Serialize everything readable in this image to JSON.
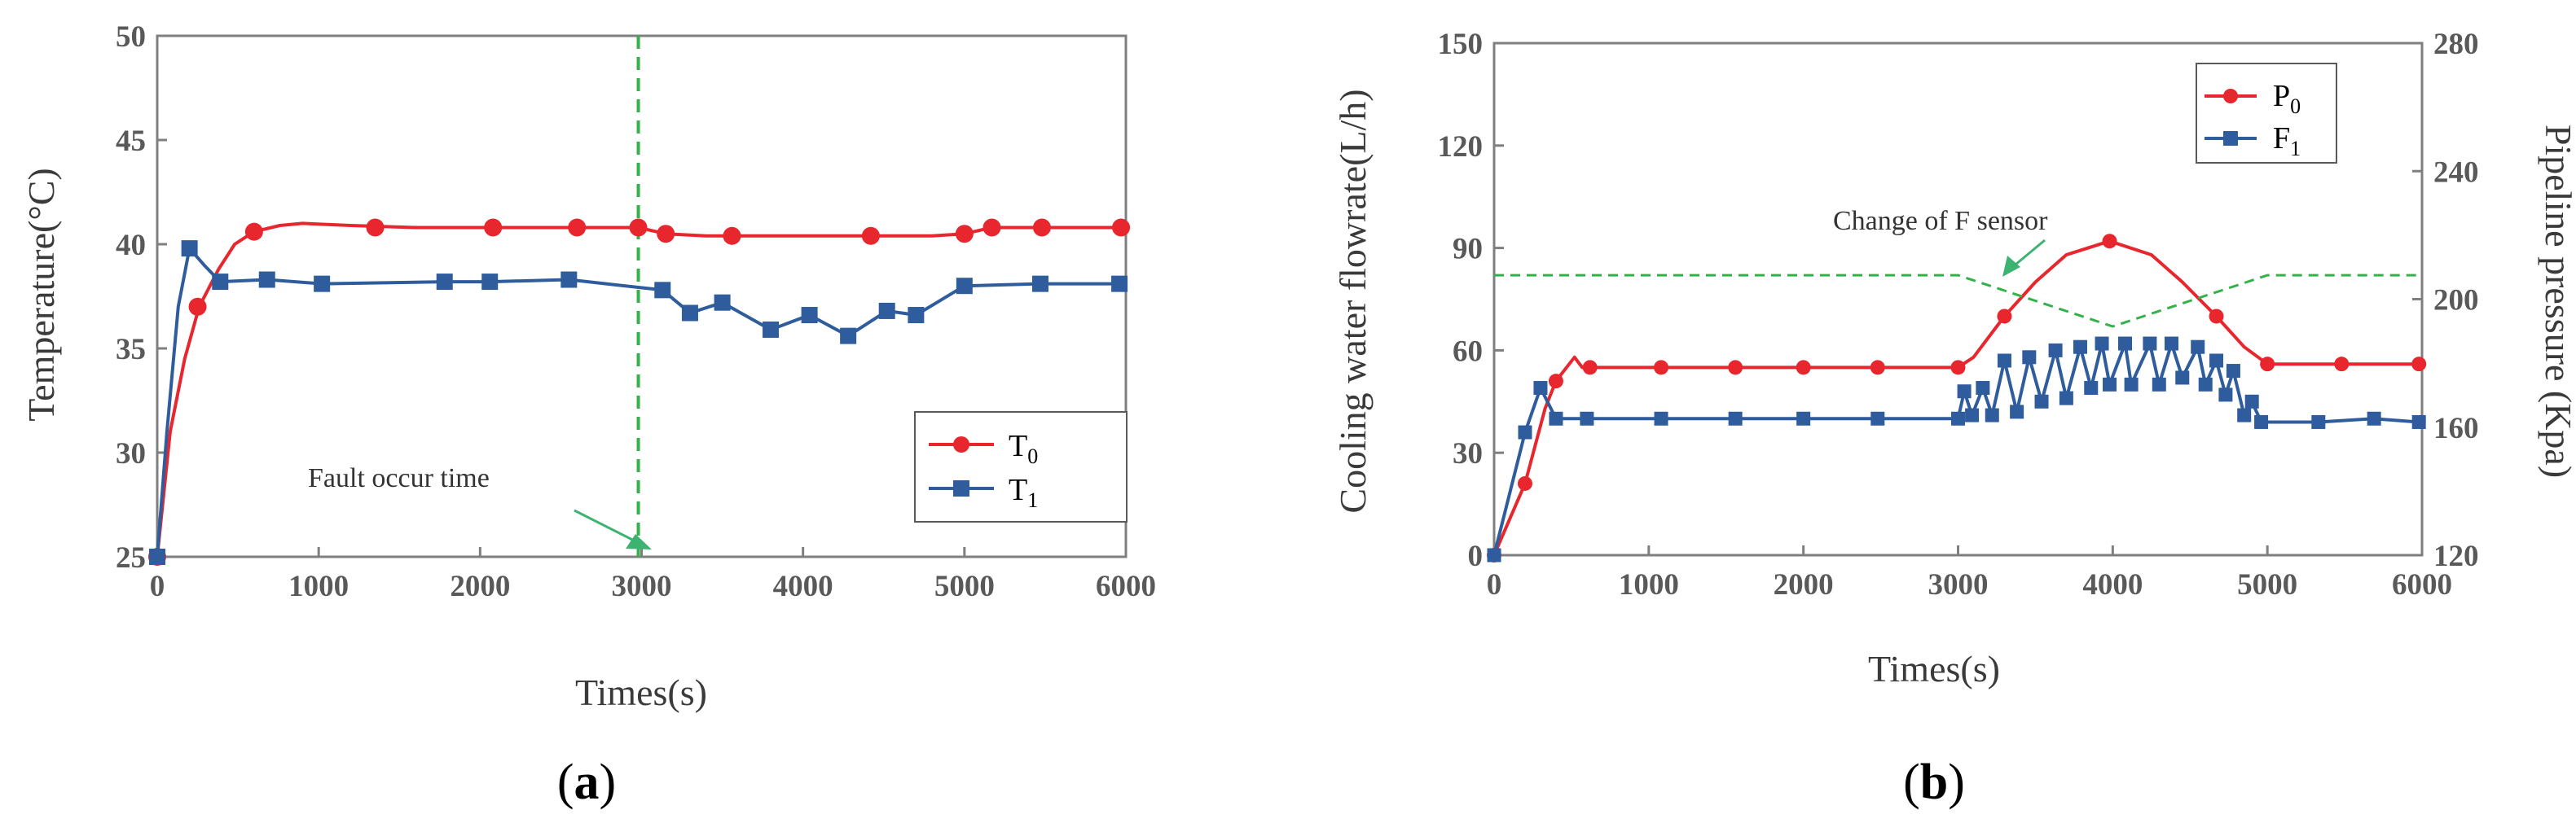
{
  "panels": [
    {
      "id": "a",
      "label": "(a)",
      "chart_data": {
        "type": "line",
        "xlabel": "Times(s)",
        "ylabel": "Temperature(°C)",
        "xlim": [
          0,
          6000
        ],
        "ylim": [
          25,
          50
        ],
        "xticks": [
          0,
          1000,
          2000,
          3000,
          4000,
          5000,
          6000
        ],
        "yticks": [
          25,
          30,
          35,
          40,
          45,
          50
        ],
        "grid": false,
        "legend_position": "bottom-right",
        "series": [
          {
            "name": "T0",
            "name_main": "T",
            "name_sub": "0",
            "color": "#e8262d",
            "marker": "circle",
            "points": [
              [
                0,
                25
              ],
              [
                250,
                37
              ],
              [
                600,
                40.6
              ],
              [
                1350,
                40.8
              ],
              [
                2080,
                40.8
              ],
              [
                2600,
                40.8
              ],
              [
                2980,
                40.8
              ],
              [
                3150,
                40.5
              ],
              [
                3560,
                40.4
              ],
              [
                4420,
                40.4
              ],
              [
                5000,
                40.5
              ],
              [
                5170,
                40.8
              ],
              [
                5480,
                40.8
              ],
              [
                5970,
                40.8
              ]
            ],
            "curve": [
              [
                0,
                25
              ],
              [
                80,
                31
              ],
              [
                170,
                34.5
              ],
              [
                260,
                37
              ],
              [
                380,
                38.8
              ],
              [
                480,
                40
              ],
              [
                600,
                40.6
              ],
              [
                760,
                40.9
              ],
              [
                900,
                41
              ],
              [
                1200,
                40.9
              ],
              [
                1600,
                40.8
              ],
              [
                2600,
                40.8
              ],
              [
                2980,
                40.8
              ],
              [
                3150,
                40.5
              ],
              [
                3400,
                40.4
              ],
              [
                4400,
                40.4
              ],
              [
                4800,
                40.4
              ],
              [
                5000,
                40.5
              ],
              [
                5170,
                40.8
              ],
              [
                5970,
                40.8
              ]
            ]
          },
          {
            "name": "T1",
            "name_main": "T",
            "name_sub": "1",
            "color": "#2e5c9c",
            "marker": "square",
            "points": [
              [
                0,
                25
              ],
              [
                200,
                39.8
              ],
              [
                390,
                38.2
              ],
              [
                680,
                38.3
              ],
              [
                1020,
                38.1
              ],
              [
                1780,
                38.2
              ],
              [
                2060,
                38.2
              ],
              [
                2550,
                38.3
              ],
              [
                3130,
                37.8
              ],
              [
                3300,
                36.7
              ],
              [
                3500,
                37.2
              ],
              [
                3800,
                35.9
              ],
              [
                4040,
                36.6
              ],
              [
                4280,
                35.6
              ],
              [
                4520,
                36.8
              ],
              [
                4700,
                36.6
              ],
              [
                5000,
                38
              ],
              [
                5470,
                38.1
              ],
              [
                5960,
                38.1
              ]
            ],
            "curve": [
              [
                0,
                25
              ],
              [
                60,
                31
              ],
              [
                130,
                37
              ],
              [
                200,
                39.8
              ],
              [
                290,
                39
              ],
              [
                390,
                38.2
              ],
              [
                680,
                38.3
              ],
              [
                1020,
                38.1
              ],
              [
                1780,
                38.2
              ],
              [
                2060,
                38.2
              ],
              [
                2550,
                38.3
              ],
              [
                3130,
                37.8
              ],
              [
                3300,
                36.7
              ],
              [
                3500,
                37.2
              ],
              [
                3800,
                35.9
              ],
              [
                4040,
                36.6
              ],
              [
                4280,
                35.6
              ],
              [
                4520,
                36.8
              ],
              [
                4700,
                36.6
              ],
              [
                5000,
                38
              ],
              [
                5470,
                38.1
              ],
              [
                5960,
                38.1
              ]
            ]
          }
        ],
        "annotations": [
          {
            "text": "Fault occur time",
            "x": 2980,
            "y": 25.3,
            "vline_x": 2980
          }
        ]
      }
    },
    {
      "id": "b",
      "label": "(b)",
      "chart_data": {
        "type": "line",
        "xlabel": "Times(s)",
        "ylabel": "Cooling water flowrate(L/h)",
        "y2label": "Pipeline pressure (Kpa)",
        "xlim": [
          0,
          6000
        ],
        "ylim": [
          0,
          150
        ],
        "y2lim": [
          120,
          280
        ],
        "xticks": [
          0,
          1000,
          2000,
          3000,
          4000,
          5000,
          6000
        ],
        "yticks": [
          0,
          30,
          60,
          90,
          120,
          150
        ],
        "y2ticks": [
          120,
          160,
          200,
          240,
          280
        ],
        "grid": false,
        "legend_position": "top-right",
        "series": [
          {
            "name": "P0",
            "name_main": "P",
            "name_sub": "0",
            "color": "#e8262d",
            "marker": "circle",
            "points": [
              [
                0,
                0
              ],
              [
                200,
                21
              ],
              [
                400,
                51
              ],
              [
                620,
                55
              ],
              [
                1080,
                55
              ],
              [
                1560,
                55
              ],
              [
                2000,
                55
              ],
              [
                2480,
                55
              ],
              [
                3000,
                55
              ],
              [
                3300,
                70
              ],
              [
                3980,
                92
              ],
              [
                4670,
                70
              ],
              [
                5000,
                56
              ],
              [
                5480,
                56
              ],
              [
                5980,
                56
              ]
            ],
            "curve": [
              [
                0,
                0
              ],
              [
                200,
                21
              ],
              [
                330,
                43
              ],
              [
                400,
                51
              ],
              [
                520,
                58
              ],
              [
                570,
                55
              ],
              [
                620,
                55
              ],
              [
                3000,
                55
              ],
              [
                3100,
                58
              ],
              [
                3300,
                70
              ],
              [
                3500,
                80
              ],
              [
                3700,
                88
              ],
              [
                3980,
                92
              ],
              [
                4250,
                88
              ],
              [
                4450,
                80
              ],
              [
                4670,
                70
              ],
              [
                4850,
                61
              ],
              [
                5000,
                56
              ],
              [
                5980,
                56
              ]
            ]
          },
          {
            "name": "F1",
            "name_main": "F",
            "name_sub": "1",
            "color": "#2e5c9c",
            "marker": "square",
            "points": [
              [
                0,
                0
              ],
              [
                200,
                36
              ],
              [
                300,
                49
              ],
              [
                400,
                40
              ],
              [
                600,
                40
              ],
              [
                1080,
                40
              ],
              [
                1560,
                40
              ],
              [
                2000,
                40
              ],
              [
                2480,
                40
              ],
              [
                3000,
                40
              ],
              [
                3040,
                48
              ],
              [
                3090,
                41
              ],
              [
                3160,
                49
              ],
              [
                3220,
                41
              ],
              [
                3300,
                57
              ],
              [
                3380,
                42
              ],
              [
                3460,
                58
              ],
              [
                3540,
                45
              ],
              [
                3630,
                60
              ],
              [
                3700,
                46
              ],
              [
                3790,
                61
              ],
              [
                3860,
                49
              ],
              [
                3930,
                62
              ],
              [
                3980,
                50
              ],
              [
                4080,
                62
              ],
              [
                4120,
                50
              ],
              [
                4240,
                62
              ],
              [
                4300,
                50
              ],
              [
                4380,
                62
              ],
              [
                4450,
                52
              ],
              [
                4550,
                61
              ],
              [
                4600,
                50
              ],
              [
                4670,
                57
              ],
              [
                4730,
                47
              ],
              [
                4780,
                54
              ],
              [
                4850,
                41
              ],
              [
                4900,
                45
              ],
              [
                4960,
                39
              ],
              [
                5330,
                39
              ],
              [
                5690,
                40
              ],
              [
                5980,
                39
              ]
            ],
            "curve": [
              [
                0,
                0
              ],
              [
                200,
                36
              ],
              [
                300,
                49
              ],
              [
                400,
                40
              ],
              [
                600,
                40
              ],
              [
                1080,
                40
              ],
              [
                1560,
                40
              ],
              [
                2000,
                40
              ],
              [
                2480,
                40
              ],
              [
                3000,
                40
              ],
              [
                3040,
                48
              ],
              [
                3090,
                41
              ],
              [
                3160,
                49
              ],
              [
                3220,
                41
              ],
              [
                3300,
                57
              ],
              [
                3380,
                42
              ],
              [
                3460,
                58
              ],
              [
                3540,
                45
              ],
              [
                3630,
                60
              ],
              [
                3700,
                46
              ],
              [
                3790,
                61
              ],
              [
                3860,
                49
              ],
              [
                3930,
                62
              ],
              [
                3980,
                50
              ],
              [
                4080,
                62
              ],
              [
                4120,
                50
              ],
              [
                4240,
                62
              ],
              [
                4300,
                50
              ],
              [
                4380,
                62
              ],
              [
                4450,
                52
              ],
              [
                4550,
                61
              ],
              [
                4600,
                50
              ],
              [
                4670,
                57
              ],
              [
                4730,
                47
              ],
              [
                4780,
                54
              ],
              [
                4850,
                41
              ],
              [
                4900,
                45
              ],
              [
                4960,
                39
              ],
              [
                5330,
                39
              ],
              [
                5690,
                40
              ],
              [
                5980,
                39
              ]
            ]
          },
          {
            "name": "dashed reference",
            "color": "#33b24a",
            "marker": "none",
            "points": [],
            "curve": [
              [
                0,
                82
              ],
              [
                3000,
                82
              ],
              [
                4000,
                67
              ],
              [
                5000,
                82
              ],
              [
                6000,
                82
              ]
            ]
          }
        ],
        "annotations": [
          {
            "text": "Change of F sensor",
            "x": 3050,
            "y": 78
          }
        ]
      }
    }
  ]
}
